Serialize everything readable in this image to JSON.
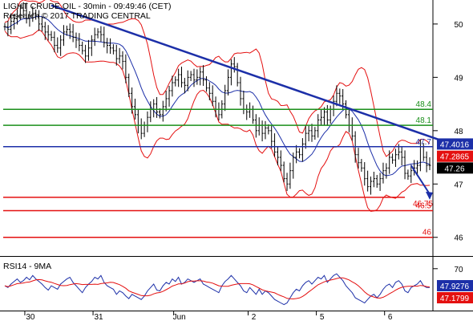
{
  "chart_data": [
    {
      "type": "line",
      "instrument": "LIGHT CRUDE OIL",
      "title_line1": "LIGHT CRUDE OIL - 30min - 09:49:46 (CET)",
      "title_line2": "Research © 2017 TRADING CENTRAL",
      "price_ticks": [
        "50",
        "49",
        "48",
        "47",
        "46"
      ],
      "price_tick_values": [
        50,
        49,
        48,
        47,
        46
      ],
      "ylim": [
        45.65,
        50.45
      ],
      "x_labels": [
        "30",
        "31",
        "Jun",
        "2",
        "5",
        "6"
      ],
      "x_label_index": [
        8,
        30,
        56,
        80,
        102,
        124
      ],
      "n_bars": 138,
      "resistances": [
        {
          "label": "48.4",
          "value": 48.4,
          "color": "#1a8f1a"
        },
        {
          "label": "48.1",
          "value": 48.1,
          "color": "#1a8f1a"
        },
        {
          "label": "47.7",
          "value": 47.7,
          "color": "#1c2fa8"
        }
      ],
      "supports": [
        {
          "label": "46.75",
          "value": 46.75,
          "color": "#e41010"
        },
        {
          "label": "46.5",
          "value": 46.5,
          "color": "#e41010"
        },
        {
          "label": "46",
          "value": 46.0,
          "color": "#e41010"
        }
      ],
      "trendline": {
        "from": [
          15,
          50.35
        ],
        "to": [
          144,
          47.75
        ],
        "color": "#1c2fa8"
      },
      "forecast_arrow": {
        "from": [
          131,
          47.35
        ],
        "to": [
          137,
          46.72
        ],
        "color": "#1c2fa8"
      },
      "price_badges": [
        {
          "label": "47.4016",
          "value": 47.75,
          "bg": "#1c2fa8",
          "fg": "#ffffff"
        },
        {
          "label": "47.2865",
          "value": 47.52,
          "bg": "#e41010",
          "fg": "#ffffff"
        },
        {
          "label": "47.26",
          "value": 47.3,
          "bg": "#000000",
          "fg": "#ffffff"
        }
      ],
      "closes": [
        49.95,
        49.9,
        50.05,
        50.1,
        50.15,
        50.3,
        50.25,
        50.1,
        50.15,
        50.2,
        50.15,
        50.0,
        49.95,
        49.85,
        49.8,
        49.75,
        49.6,
        49.55,
        49.7,
        49.85,
        49.9,
        49.85,
        49.75,
        49.7,
        49.6,
        49.5,
        49.4,
        49.55,
        49.7,
        49.8,
        49.85,
        49.8,
        49.65,
        49.6,
        49.55,
        49.5,
        49.35,
        49.4,
        49.3,
        49.0,
        48.7,
        48.45,
        48.3,
        48.1,
        47.95,
        48.1,
        48.25,
        48.4,
        48.5,
        48.35,
        48.3,
        48.45,
        48.6,
        48.75,
        48.9,
        48.95,
        49.05,
        48.9,
        48.85,
        49.0,
        49.05,
        48.95,
        49.0,
        49.1,
        48.95,
        48.8,
        48.7,
        48.55,
        48.4,
        48.3,
        48.5,
        48.75,
        49.0,
        49.25,
        49.2,
        48.9,
        48.6,
        48.4,
        48.35,
        48.4,
        48.2,
        48.0,
        48.1,
        47.95,
        48.05,
        48.0,
        47.8,
        47.6,
        47.5,
        47.35,
        47.1,
        47.0,
        47.25,
        47.5,
        47.6,
        47.55,
        47.75,
        47.95,
        48.0,
        47.9,
        48.0,
        48.2,
        48.25,
        48.35,
        48.2,
        48.4,
        48.55,
        48.7,
        48.65,
        48.5,
        48.3,
        48.1,
        47.9,
        47.55,
        47.4,
        47.3,
        47.1,
        46.95,
        47.05,
        47.1,
        47.0,
        47.1,
        47.25,
        47.3,
        47.5,
        47.45,
        47.55,
        47.6,
        47.5,
        47.2,
        47.15,
        47.25,
        47.3,
        47.35,
        47.7,
        47.5,
        47.35,
        47.35
      ]
    },
    {
      "type": "line",
      "title": "RSI14 - 9MA",
      "rsi_ticks": [
        "70"
      ],
      "rsi_tick_values": [
        70
      ],
      "ylim": [
        22,
        82
      ],
      "rsi_badges": [
        {
          "label": "47.9276",
          "value": 47.93,
          "bg": "#1c2fa8",
          "fg": "#ffffff"
        },
        {
          "label": "47.1799",
          "value": 47.18,
          "bg": "#e41010",
          "fg": "#ffffff"
        }
      ],
      "series": [
        {
          "values": [
            50,
            48,
            52,
            55,
            58,
            54,
            56,
            60,
            57,
            62,
            58,
            55,
            52,
            48,
            45,
            50,
            48,
            46,
            52,
            55,
            58,
            60,
            54,
            50,
            46,
            42,
            48,
            52,
            55,
            60,
            58,
            62,
            54,
            50,
            48,
            46,
            40,
            44,
            42,
            38,
            35,
            40,
            38,
            36,
            34,
            38,
            44,
            48,
            52,
            45,
            44,
            50,
            54,
            52,
            58,
            55,
            60,
            52,
            54,
            58,
            56,
            54,
            56,
            58,
            52,
            50,
            48,
            46,
            44,
            42,
            50,
            55,
            58,
            62,
            58,
            54,
            50,
            44,
            42,
            48,
            44,
            40,
            46,
            40,
            44,
            42,
            38,
            34,
            32,
            30,
            28,
            30,
            36,
            42,
            46,
            44,
            50,
            54,
            56,
            52,
            56,
            60,
            58,
            62,
            54,
            58,
            62,
            64,
            60,
            56,
            50,
            46,
            42,
            36,
            34,
            32,
            30,
            34,
            38,
            40,
            36,
            40,
            46,
            50,
            52,
            48,
            54,
            56,
            52,
            44,
            42,
            48,
            50,
            52,
            56,
            50,
            48,
            48
          ]
        }
      ]
    }
  ]
}
